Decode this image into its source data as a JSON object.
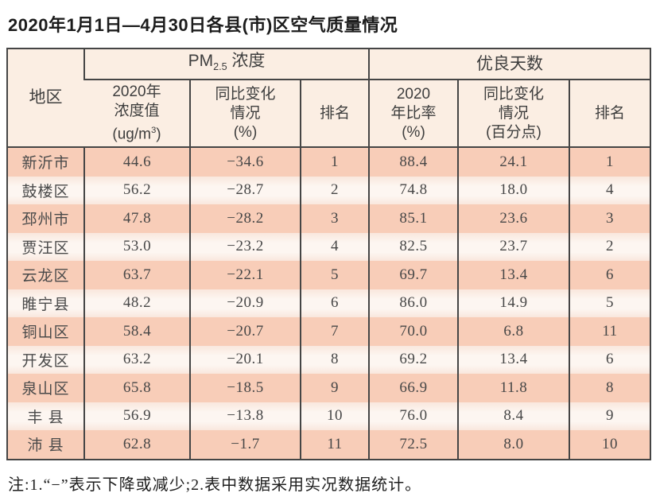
{
  "title": "2020年1月1日—4月30日各县(市)区空气质量情况",
  "table": {
    "region_header": "地区",
    "pm25_group": {
      "prefix": "PM",
      "sub": "2.5",
      "suffix": " 浓度"
    },
    "good_group": "优良天数",
    "pm25_value_header": {
      "line1": "2020年",
      "line2": "浓度值",
      "line3_prefix": "(ug/m",
      "line3_sup": "3",
      "line3_suffix": ")"
    },
    "pm25_change_header": {
      "line1": "同比变化",
      "line2": "情况",
      "line3": "(%)"
    },
    "pm25_rank_header": "排名",
    "good_rate_header": {
      "line1": "2020",
      "line2": "年比率",
      "line3": "(%)"
    },
    "good_change_header": {
      "line1": "同比变化",
      "line2": "情况",
      "line3": "(百分点)"
    },
    "good_rank_header": "排名",
    "rows": [
      {
        "region": "新沂市",
        "pm25": "44.6",
        "pm25_change": "−34.6",
        "pm25_rank": "1",
        "rate": "88.4",
        "rate_change": "24.1",
        "rate_rank": "1"
      },
      {
        "region": "鼓楼区",
        "pm25": "56.2",
        "pm25_change": "−28.7",
        "pm25_rank": "2",
        "rate": "74.8",
        "rate_change": "18.0",
        "rate_rank": "4"
      },
      {
        "region": "邳州市",
        "pm25": "47.8",
        "pm25_change": "−28.2",
        "pm25_rank": "3",
        "rate": "85.1",
        "rate_change": "23.6",
        "rate_rank": "3"
      },
      {
        "region": "贾汪区",
        "pm25": "53.0",
        "pm25_change": "−23.2",
        "pm25_rank": "4",
        "rate": "82.5",
        "rate_change": "23.7",
        "rate_rank": "2"
      },
      {
        "region": "云龙区",
        "pm25": "63.7",
        "pm25_change": "−22.1",
        "pm25_rank": "5",
        "rate": "69.7",
        "rate_change": "13.4",
        "rate_rank": "6"
      },
      {
        "region": "睢宁县",
        "pm25": "48.2",
        "pm25_change": "−20.9",
        "pm25_rank": "6",
        "rate": "86.0",
        "rate_change": "14.9",
        "rate_rank": "5"
      },
      {
        "region": "铜山区",
        "pm25": "58.4",
        "pm25_change": "−20.7",
        "pm25_rank": "7",
        "rate": "70.0",
        "rate_change": "6.8",
        "rate_rank": "11"
      },
      {
        "region": "开发区",
        "pm25": "63.2",
        "pm25_change": "−20.1",
        "pm25_rank": "8",
        "rate": "69.2",
        "rate_change": "13.4",
        "rate_rank": "6"
      },
      {
        "region": "泉山区",
        "pm25": "65.8",
        "pm25_change": "−18.5",
        "pm25_rank": "9",
        "rate": "66.9",
        "rate_change": "11.8",
        "rate_rank": "8"
      },
      {
        "region": "丰 县",
        "pm25": "56.9",
        "pm25_change": "−13.8",
        "pm25_rank": "10",
        "rate": "76.0",
        "rate_change": "8.4",
        "rate_rank": "9"
      },
      {
        "region": "沛 县",
        "pm25": "62.8",
        "pm25_change": "−1.7",
        "pm25_rank": "11",
        "rate": "72.5",
        "rate_change": "8.0",
        "rate_rank": "10"
      }
    ]
  },
  "footnote": "注:1.“−”表示下降或减少;2.表中数据采用实况数据统计。",
  "colors": {
    "row_dark": "#f8cdb8",
    "row_light": "#fdf6f1",
    "header_bg": "#fbeee3",
    "border": "#454545"
  }
}
